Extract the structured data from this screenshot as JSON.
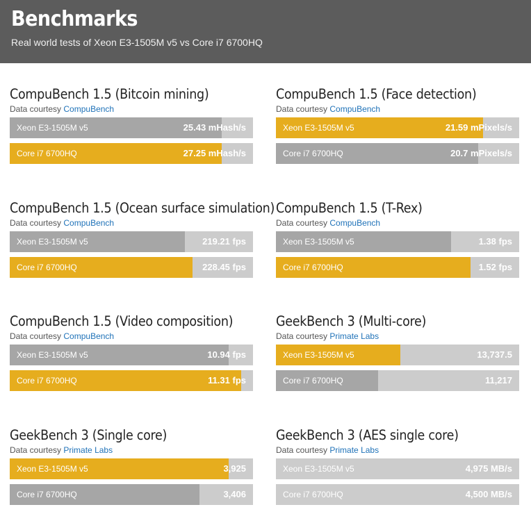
{
  "header": {
    "title": "Benchmarks",
    "subtitle": "Real world tests of Xeon E3-1505M v5 vs Core i7 6700HQ"
  },
  "colors": {
    "gold": "#e6ad1e",
    "gray": "#a6a6a6",
    "track": "#cccccc"
  },
  "chart_data": [
    {
      "type": "bar",
      "title": "CompuBench 1.5 (Bitcoin mining)",
      "courtesy_prefix": "Data courtesy",
      "courtesy_source": "CompuBench",
      "unit": "mHash/s",
      "bars": [
        {
          "name": "Xeon E3-1505M v5",
          "value": 25.43,
          "label": "25.43 mHash/s",
          "color": "gray",
          "fill": 0.87
        },
        {
          "name": "Core i7 6700HQ",
          "value": 27.25,
          "label": "27.25 mHash/s",
          "color": "gold",
          "fill": 0.87
        }
      ]
    },
    {
      "type": "bar",
      "title": "CompuBench 1.5 (Face detection)",
      "courtesy_prefix": "Data courtesy",
      "courtesy_source": "CompuBench",
      "unit": "mPixels/s",
      "bars": [
        {
          "name": "Xeon E3-1505M v5",
          "value": 21.59,
          "label": "21.59 mPixels/s",
          "color": "gold",
          "fill": 0.85
        },
        {
          "name": "Core i7 6700HQ",
          "value": 20.7,
          "label": "20.7 mPixels/s",
          "color": "gray",
          "fill": 0.83
        }
      ]
    },
    {
      "type": "bar",
      "title": "CompuBench 1.5 (Ocean surface simulation)",
      "courtesy_prefix": "Data courtesy",
      "courtesy_source": "CompuBench",
      "unit": "fps",
      "bars": [
        {
          "name": "Xeon E3-1505M v5",
          "value": 219.21,
          "label": "219.21 fps",
          "color": "gray",
          "fill": 0.72
        },
        {
          "name": "Core i7 6700HQ",
          "value": 228.45,
          "label": "228.45 fps",
          "color": "gold",
          "fill": 0.75
        }
      ]
    },
    {
      "type": "bar",
      "title": "CompuBench 1.5 (T-Rex)",
      "courtesy_prefix": "Data courtesy",
      "courtesy_source": "CompuBench",
      "unit": "fps",
      "bars": [
        {
          "name": "Xeon E3-1505M v5",
          "value": 1.38,
          "label": "1.38 fps",
          "color": "gray",
          "fill": 0.72
        },
        {
          "name": "Core i7 6700HQ",
          "value": 1.52,
          "label": "1.52 fps",
          "color": "gold",
          "fill": 0.8
        }
      ]
    },
    {
      "type": "bar",
      "title": "CompuBench 1.5 (Video composition)",
      "courtesy_prefix": "Data courtesy",
      "courtesy_source": "CompuBench",
      "unit": "fps",
      "bars": [
        {
          "name": "Xeon E3-1505M v5",
          "value": 10.94,
          "label": "10.94 fps",
          "color": "gray",
          "fill": 0.9
        },
        {
          "name": "Core i7 6700HQ",
          "value": 11.31,
          "label": "11.31 fps",
          "color": "gold",
          "fill": 0.95
        }
      ]
    },
    {
      "type": "bar",
      "title": "GeekBench 3 (Multi-core)",
      "courtesy_prefix": "Data courtesy",
      "courtesy_source": "Primate Labs",
      "unit": "",
      "bars": [
        {
          "name": "Xeon E3-1505M v5",
          "value": 13737.5,
          "label": "13,737.5",
          "color": "gold",
          "fill": 0.51
        },
        {
          "name": "Core i7 6700HQ",
          "value": 11217,
          "label": "11,217",
          "color": "gray",
          "fill": 0.42
        }
      ]
    },
    {
      "type": "bar",
      "title": "GeekBench 3 (Single core)",
      "courtesy_prefix": "Data courtesy",
      "courtesy_source": "Primate Labs",
      "unit": "",
      "bars": [
        {
          "name": "Xeon E3-1505M v5",
          "value": 3925,
          "label": "3,925",
          "color": "gold",
          "fill": 0.9
        },
        {
          "name": "Core i7 6700HQ",
          "value": 3406,
          "label": "3,406",
          "color": "gray",
          "fill": 0.78
        }
      ]
    },
    {
      "type": "bar",
      "title": "GeekBench 3 (AES single core)",
      "courtesy_prefix": "Data courtesy",
      "courtesy_source": "Primate Labs",
      "unit": "MB/s",
      "bars": [
        {
          "name": "Xeon E3-1505M v5",
          "value": 4975,
          "label": "4,975 MB/s",
          "color": "gray",
          "fill": 0.0
        },
        {
          "name": "Core i7 6700HQ",
          "value": 4500,
          "label": "4,500 MB/s",
          "color": "gray",
          "fill": 0.0
        }
      ]
    }
  ]
}
